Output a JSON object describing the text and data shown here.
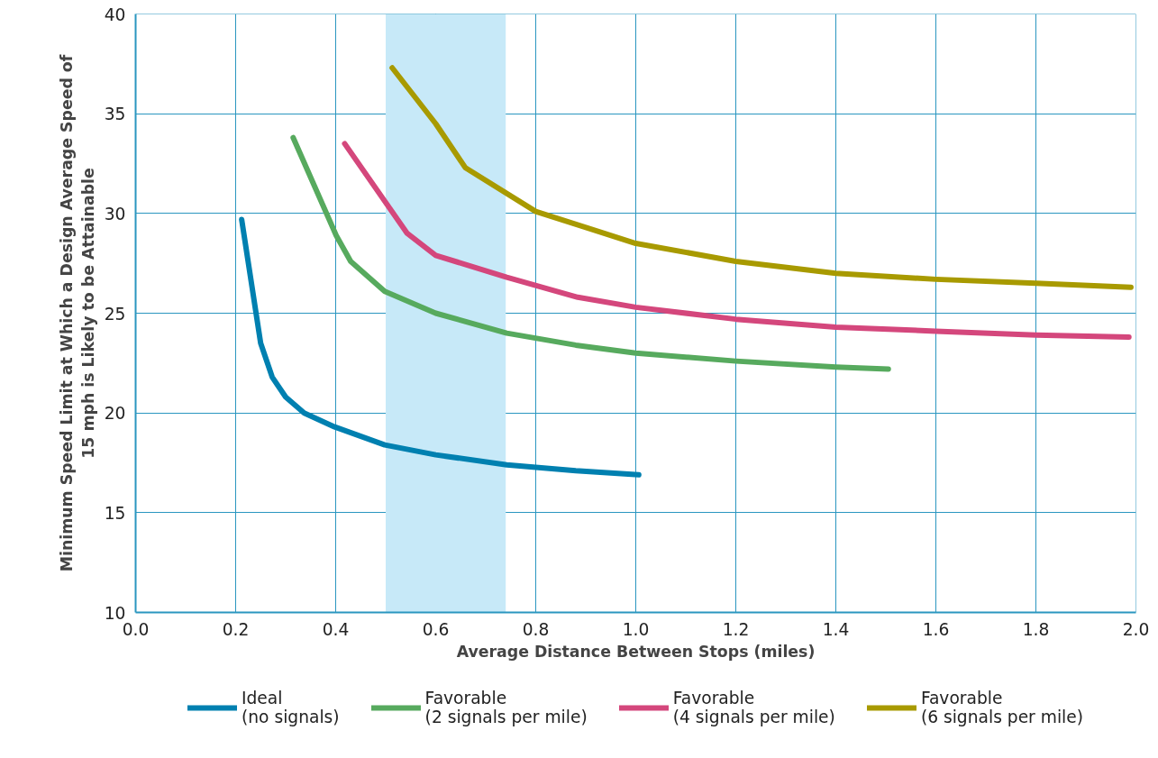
{
  "chart_data": {
    "type": "line",
    "xlabel": "Average Distance Between Stops (miles)",
    "ylabel": "Minimum Speed Limit at Which a Design Average Speed of\n15 mph is Likely to be Attainable",
    "xlim": [
      0,
      2
    ],
    "ylim": [
      10,
      40
    ],
    "xticks": [
      {
        "value": 0,
        "label": "0.0"
      },
      0.2,
      0.4,
      0.6,
      0.8,
      {
        "value": 1,
        "label": "1.0"
      },
      1.2,
      1.4,
      1.6,
      1.8,
      {
        "value": 2,
        "label": "2.0"
      }
    ],
    "yticks": [
      10,
      15,
      20,
      25,
      30,
      35,
      40
    ],
    "grid": true,
    "legend": "bottom",
    "marker": "none",
    "line_style": "solid",
    "bands": [
      {
        "axis": "x",
        "from": 0.5,
        "to": 0.74,
        "color": "#c7e9f8"
      }
    ],
    "series": [
      {
        "name": "Ideal\n(no signals)",
        "color": "#0080b0",
        "x": [
          0.212,
          0.25,
          0.273,
          0.3,
          0.337,
          0.398,
          0.498,
          0.6,
          0.742,
          0.88,
          1.006
        ],
        "values": [
          29.7,
          23.5,
          21.8,
          20.8,
          20.0,
          19.3,
          18.4,
          17.9,
          17.4,
          17.1,
          16.9
        ]
      },
      {
        "name": "Favorable\n(2 signals per mile)",
        "color": "#57aa5e",
        "x": [
          0.315,
          0.401,
          0.43,
          0.498,
          0.6,
          0.742,
          0.88,
          1.0,
          1.2,
          1.4,
          1.505
        ],
        "values": [
          33.8,
          28.9,
          27.6,
          26.1,
          25.0,
          24.0,
          23.4,
          23.0,
          22.6,
          22.3,
          22.2
        ]
      },
      {
        "name": "Favorable\n(4 signals per mile)",
        "color": "#d4477c",
        "x": [
          0.418,
          0.543,
          0.6,
          0.742,
          0.884,
          1.0,
          1.2,
          1.4,
          1.6,
          1.8,
          1.986
        ],
        "values": [
          33.5,
          29.0,
          27.9,
          26.8,
          25.8,
          25.3,
          24.7,
          24.3,
          24.1,
          23.9,
          23.8
        ]
      },
      {
        "name": "Favorable\n(6 signals per mile)",
        "color": "#a89a00",
        "x": [
          0.513,
          0.6,
          0.659,
          0.8,
          1.0,
          1.2,
          1.4,
          1.6,
          1.8,
          1.99
        ],
        "values": [
          37.3,
          34.5,
          32.3,
          30.1,
          28.5,
          27.6,
          27.0,
          26.7,
          26.5,
          26.3
        ]
      }
    ]
  }
}
